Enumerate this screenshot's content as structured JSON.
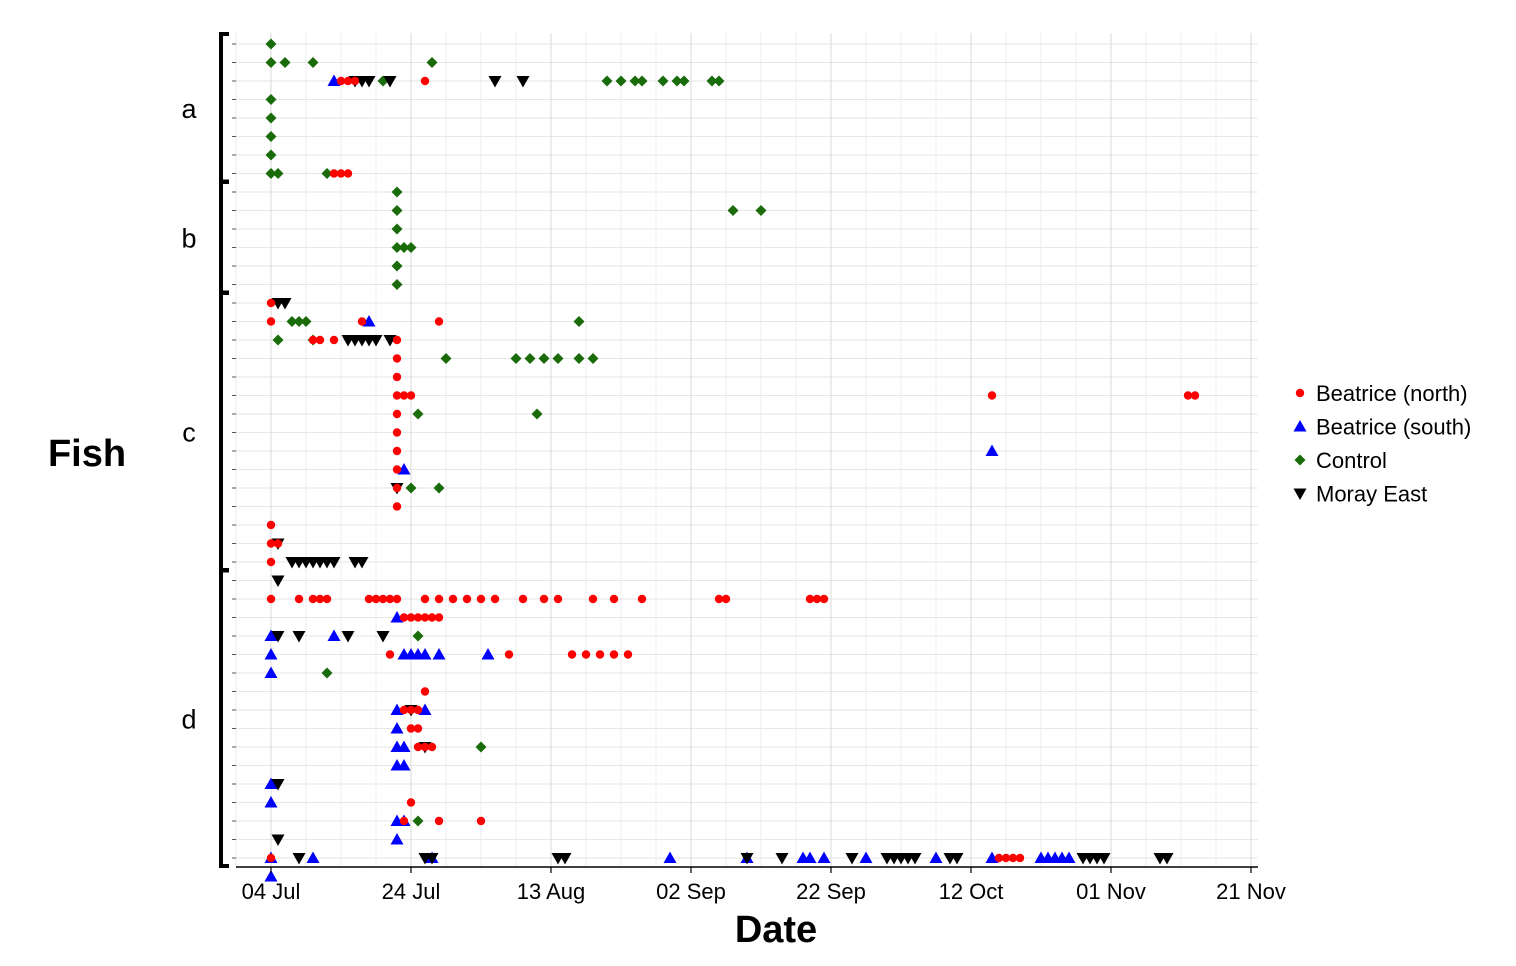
{
  "chart_data": {
    "type": "scatter",
    "title": "",
    "xlabel": "Date",
    "ylabel": "Fish",
    "x_axis": {
      "type": "date",
      "range": [
        "2019-06-29",
        "2019-11-22"
      ],
      "tick_labels": [
        "04 Jul",
        "24 Jul",
        "13 Aug",
        "02 Sep",
        "22 Sep",
        "12 Oct",
        "01 Nov",
        "21 Nov"
      ],
      "tick_dates": [
        "2019-07-04",
        "2019-07-24",
        "2019-08-13",
        "2019-09-02",
        "2019-09-22",
        "2019-10-12",
        "2019-11-01",
        "2019-11-21"
      ]
    },
    "y_axis": {
      "range": [
        1,
        45
      ],
      "reversed": true,
      "tick_labels_shown": false
    },
    "grid": true,
    "legend": {
      "position": "right"
    },
    "groups": [
      {
        "label": "a",
        "rows": [
          1,
          8
        ]
      },
      {
        "label": "b",
        "rows": [
          9,
          14
        ]
      },
      {
        "label": "c",
        "rows": [
          15,
          29
        ]
      },
      {
        "label": "d",
        "rows": [
          30,
          45
        ]
      }
    ],
    "series": [
      {
        "name": "Beatrice (north)",
        "marker": "circle",
        "color": "#ff0000",
        "points": [
          [
            "2019-07-14",
            3
          ],
          [
            "2019-07-15",
            3
          ],
          [
            "2019-07-16",
            3
          ],
          [
            "2019-07-26",
            3
          ],
          [
            "2019-07-13",
            8
          ],
          [
            "2019-07-14",
            8
          ],
          [
            "2019-07-15",
            8
          ],
          [
            "2019-07-04",
            15
          ],
          [
            "2019-07-04",
            16
          ],
          [
            "2019-07-17",
            16
          ],
          [
            "2019-07-28",
            16
          ],
          [
            "2019-07-10",
            17
          ],
          [
            "2019-07-11",
            17
          ],
          [
            "2019-07-13",
            17
          ],
          [
            "2019-07-22",
            17
          ],
          [
            "2019-07-22",
            18
          ],
          [
            "2019-07-22",
            19
          ],
          [
            "2019-07-22",
            20
          ],
          [
            "2019-07-23",
            20
          ],
          [
            "2019-07-24",
            20
          ],
          [
            "2019-07-22",
            21
          ],
          [
            "2019-07-22",
            22
          ],
          [
            "2019-07-22",
            23
          ],
          [
            "2019-07-22",
            24
          ],
          [
            "2019-07-22",
            25
          ],
          [
            "2019-07-22",
            26
          ],
          [
            "2019-10-15",
            20
          ],
          [
            "2019-11-12",
            20
          ],
          [
            "2019-11-13",
            20
          ],
          [
            "2019-07-04",
            27
          ],
          [
            "2019-07-04",
            28
          ],
          [
            "2019-07-05",
            28
          ],
          [
            "2019-07-04",
            29
          ],
          [
            "2019-07-04",
            31
          ],
          [
            "2019-07-08",
            31
          ],
          [
            "2019-07-10",
            31
          ],
          [
            "2019-07-11",
            31
          ],
          [
            "2019-07-12",
            31
          ],
          [
            "2019-07-18",
            31
          ],
          [
            "2019-07-19",
            31
          ],
          [
            "2019-07-20",
            31
          ],
          [
            "2019-07-21",
            31
          ],
          [
            "2019-07-22",
            31
          ],
          [
            "2019-07-26",
            31
          ],
          [
            "2019-07-28",
            31
          ],
          [
            "2019-07-30",
            31
          ],
          [
            "2019-08-01",
            31
          ],
          [
            "2019-08-03",
            31
          ],
          [
            "2019-08-05",
            31
          ],
          [
            "2019-08-09",
            31
          ],
          [
            "2019-08-12",
            31
          ],
          [
            "2019-08-14",
            31
          ],
          [
            "2019-08-19",
            31
          ],
          [
            "2019-08-22",
            31
          ],
          [
            "2019-08-26",
            31
          ],
          [
            "2019-09-06",
            31
          ],
          [
            "2019-09-07",
            31
          ],
          [
            "2019-09-19",
            31
          ],
          [
            "2019-09-20",
            31
          ],
          [
            "2019-09-21",
            31
          ],
          [
            "2019-07-23",
            32
          ],
          [
            "2019-07-24",
            32
          ],
          [
            "2019-07-25",
            32
          ],
          [
            "2019-07-26",
            32
          ],
          [
            "2019-07-27",
            32
          ],
          [
            "2019-07-28",
            32
          ],
          [
            "2019-07-21",
            34
          ],
          [
            "2019-08-07",
            34
          ],
          [
            "2019-08-16",
            34
          ],
          [
            "2019-08-18",
            34
          ],
          [
            "2019-08-20",
            34
          ],
          [
            "2019-08-22",
            34
          ],
          [
            "2019-08-24",
            34
          ],
          [
            "2019-07-26",
            36
          ],
          [
            "2019-07-23",
            37
          ],
          [
            "2019-07-24",
            37
          ],
          [
            "2019-07-25",
            37
          ],
          [
            "2019-07-24",
            38
          ],
          [
            "2019-07-25",
            38
          ],
          [
            "2019-07-25",
            39
          ],
          [
            "2019-07-26",
            39
          ],
          [
            "2019-07-27",
            39
          ],
          [
            "2019-07-24",
            42
          ],
          [
            "2019-07-23",
            43
          ],
          [
            "2019-07-28",
            43
          ],
          [
            "2019-08-03",
            43
          ],
          [
            "2019-07-04",
            45
          ],
          [
            "2019-10-16",
            45
          ],
          [
            "2019-10-17",
            45
          ],
          [
            "2019-10-18",
            45
          ],
          [
            "2019-10-19",
            45
          ]
        ]
      },
      {
        "name": "Beatrice (south)",
        "marker": "triangle-up",
        "color": "#0000ff",
        "points": [
          [
            "2019-07-13",
            3
          ],
          [
            "2019-07-18",
            16
          ],
          [
            "2019-07-23",
            24
          ],
          [
            "2019-07-22",
            32
          ],
          [
            "2019-07-04",
            33
          ],
          [
            "2019-07-13",
            33
          ],
          [
            "2019-07-04",
            34
          ],
          [
            "2019-07-23",
            34
          ],
          [
            "2019-07-24",
            34
          ],
          [
            "2019-07-25",
            34
          ],
          [
            "2019-07-26",
            34
          ],
          [
            "2019-07-28",
            34
          ],
          [
            "2019-08-04",
            34
          ],
          [
            "2019-07-04",
            35
          ],
          [
            "2019-07-22",
            37
          ],
          [
            "2019-07-26",
            37
          ],
          [
            "2019-07-22",
            38
          ],
          [
            "2019-07-22",
            39
          ],
          [
            "2019-07-23",
            39
          ],
          [
            "2019-07-22",
            40
          ],
          [
            "2019-07-23",
            40
          ],
          [
            "2019-07-04",
            41
          ],
          [
            "2019-07-04",
            42
          ],
          [
            "2019-07-22",
            43
          ],
          [
            "2019-07-23",
            43
          ],
          [
            "2019-07-22",
            44
          ],
          [
            "2019-07-04",
            45
          ],
          [
            "2019-07-10",
            45
          ],
          [
            "2019-07-27",
            45
          ],
          [
            "2019-08-30",
            45
          ],
          [
            "2019-09-10",
            45
          ],
          [
            "2019-09-18",
            45
          ],
          [
            "2019-09-19",
            45
          ],
          [
            "2019-09-21",
            45
          ],
          [
            "2019-09-27",
            45
          ],
          [
            "2019-10-07",
            45
          ],
          [
            "2019-10-15",
            45
          ],
          [
            "2019-10-22",
            45
          ],
          [
            "2019-10-23",
            45
          ],
          [
            "2019-10-24",
            45
          ],
          [
            "2019-10-25",
            45
          ],
          [
            "2019-10-26",
            45
          ],
          [
            "2019-10-15",
            23
          ],
          [
            "2019-07-04",
            46
          ]
        ]
      },
      {
        "name": "Control",
        "marker": "diamond",
        "color": "#1a6b0a",
        "points": [
          [
            "2019-07-04",
            1
          ],
          [
            "2019-07-04",
            2
          ],
          [
            "2019-07-06",
            2
          ],
          [
            "2019-07-10",
            2
          ],
          [
            "2019-07-27",
            2
          ],
          [
            "2019-07-20",
            3
          ],
          [
            "2019-08-21",
            3
          ],
          [
            "2019-08-23",
            3
          ],
          [
            "2019-08-25",
            3
          ],
          [
            "2019-08-26",
            3
          ],
          [
            "2019-08-29",
            3
          ],
          [
            "2019-08-31",
            3
          ],
          [
            "2019-09-01",
            3
          ],
          [
            "2019-09-05",
            3
          ],
          [
            "2019-09-06",
            3
          ],
          [
            "2019-07-04",
            4
          ],
          [
            "2019-07-04",
            5
          ],
          [
            "2019-07-04",
            6
          ],
          [
            "2019-07-04",
            7
          ],
          [
            "2019-07-04",
            8
          ],
          [
            "2019-07-05",
            8
          ],
          [
            "2019-07-12",
            8
          ],
          [
            "2019-07-22",
            9
          ],
          [
            "2019-07-22",
            10
          ],
          [
            "2019-09-08",
            10
          ],
          [
            "2019-09-12",
            10
          ],
          [
            "2019-07-22",
            11
          ],
          [
            "2019-07-22",
            12
          ],
          [
            "2019-07-23",
            12
          ],
          [
            "2019-07-24",
            12
          ],
          [
            "2019-07-22",
            13
          ],
          [
            "2019-07-22",
            14
          ],
          [
            "2019-07-07",
            16
          ],
          [
            "2019-07-08",
            16
          ],
          [
            "2019-07-09",
            16
          ],
          [
            "2019-08-17",
            16
          ],
          [
            "2019-07-05",
            17
          ],
          [
            "2019-07-10",
            17
          ],
          [
            "2019-07-29",
            18
          ],
          [
            "2019-08-08",
            18
          ],
          [
            "2019-08-10",
            18
          ],
          [
            "2019-08-12",
            18
          ],
          [
            "2019-08-14",
            18
          ],
          [
            "2019-08-17",
            18
          ],
          [
            "2019-08-19",
            18
          ],
          [
            "2019-07-25",
            21
          ],
          [
            "2019-08-11",
            21
          ],
          [
            "2019-07-24",
            25
          ],
          [
            "2019-07-28",
            25
          ],
          [
            "2019-07-25",
            33
          ],
          [
            "2019-07-12",
            35
          ],
          [
            "2019-08-03",
            39
          ],
          [
            "2019-07-25",
            43
          ]
        ]
      },
      {
        "name": "Moray East",
        "marker": "triangle-down",
        "color": "#000000",
        "points": [
          [
            "2019-07-16",
            3
          ],
          [
            "2019-07-17",
            3
          ],
          [
            "2019-07-18",
            3
          ],
          [
            "2019-07-21",
            3
          ],
          [
            "2019-08-05",
            3
          ],
          [
            "2019-08-09",
            3
          ],
          [
            "2019-07-05",
            15
          ],
          [
            "2019-07-06",
            15
          ],
          [
            "2019-07-15",
            17
          ],
          [
            "2019-07-16",
            17
          ],
          [
            "2019-07-17",
            17
          ],
          [
            "2019-07-18",
            17
          ],
          [
            "2019-07-19",
            17
          ],
          [
            "2019-07-21",
            17
          ],
          [
            "2019-07-22",
            25
          ],
          [
            "2019-07-05",
            28
          ],
          [
            "2019-07-07",
            29
          ],
          [
            "2019-07-08",
            29
          ],
          [
            "2019-07-09",
            29
          ],
          [
            "2019-07-10",
            29
          ],
          [
            "2019-07-11",
            29
          ],
          [
            "2019-07-12",
            29
          ],
          [
            "2019-07-13",
            29
          ],
          [
            "2019-07-16",
            29
          ],
          [
            "2019-07-17",
            29
          ],
          [
            "2019-07-05",
            30
          ],
          [
            "2019-07-05",
            33
          ],
          [
            "2019-07-08",
            33
          ],
          [
            "2019-07-15",
            33
          ],
          [
            "2019-07-20",
            33
          ],
          [
            "2019-07-24",
            37
          ],
          [
            "2019-07-26",
            39
          ],
          [
            "2019-07-05",
            41
          ],
          [
            "2019-07-05",
            44
          ],
          [
            "2019-07-08",
            45
          ],
          [
            "2019-07-26",
            45
          ],
          [
            "2019-07-27",
            45
          ],
          [
            "2019-08-14",
            45
          ],
          [
            "2019-08-15",
            45
          ],
          [
            "2019-09-10",
            45
          ],
          [
            "2019-09-15",
            45
          ],
          [
            "2019-09-25",
            45
          ],
          [
            "2019-09-30",
            45
          ],
          [
            "2019-10-01",
            45
          ],
          [
            "2019-10-02",
            45
          ],
          [
            "2019-10-03",
            45
          ],
          [
            "2019-10-04",
            45
          ],
          [
            "2019-10-09",
            45
          ],
          [
            "2019-10-10",
            45
          ],
          [
            "2019-10-28",
            45
          ],
          [
            "2019-10-29",
            45
          ],
          [
            "2019-10-30",
            45
          ],
          [
            "2019-10-31",
            45
          ],
          [
            "2019-11-08",
            45
          ],
          [
            "2019-11-09",
            45
          ]
        ]
      }
    ]
  }
}
